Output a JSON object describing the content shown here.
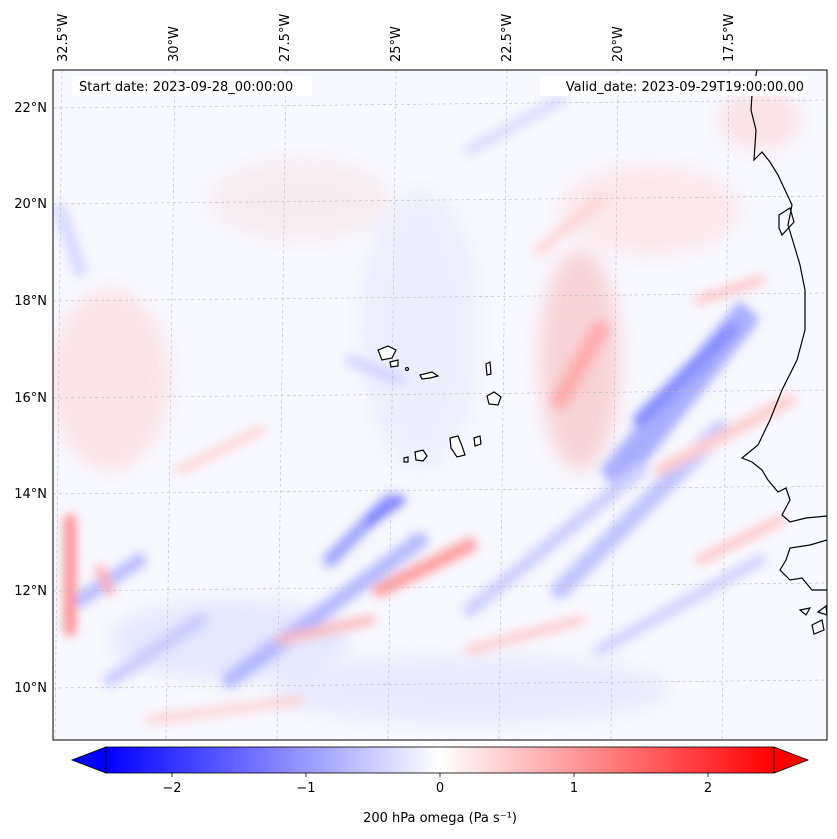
{
  "map": {
    "start_label": "Start date: 2023-09-28_00:00:00",
    "valid_label": "Valid_date: 2023-09-29T19:00:00.00",
    "lon_labels": [
      "32.5°W",
      "30°W",
      "27.5°W",
      "25°W",
      "22.5°W",
      "20°W",
      "17.5°W"
    ],
    "lat_labels": [
      "22°N",
      "20°N",
      "18°N",
      "16°N",
      "14°N",
      "12°N",
      "10°N"
    ],
    "extent": {
      "lon_min": -33.0,
      "lon_max": -15.5,
      "lat_min": 9.0,
      "lat_max": 22.6
    },
    "field": "omega",
    "level": "200 hPa",
    "gridlines": "dashed grey"
  },
  "colorbar": {
    "label": "200 hPa omega (Pa s⁻¹)",
    "ticks": [
      "−2",
      "−1",
      "0",
      "1",
      "2"
    ],
    "tick_values": [
      -2,
      -1,
      0,
      1,
      2
    ],
    "vmin": -2.5,
    "vmax": 2.5,
    "cmap": "bwr",
    "colors": {
      "negative": "#0000ff",
      "zero": "#ffffff",
      "positive": "#ff0000"
    },
    "extend": "both"
  }
}
